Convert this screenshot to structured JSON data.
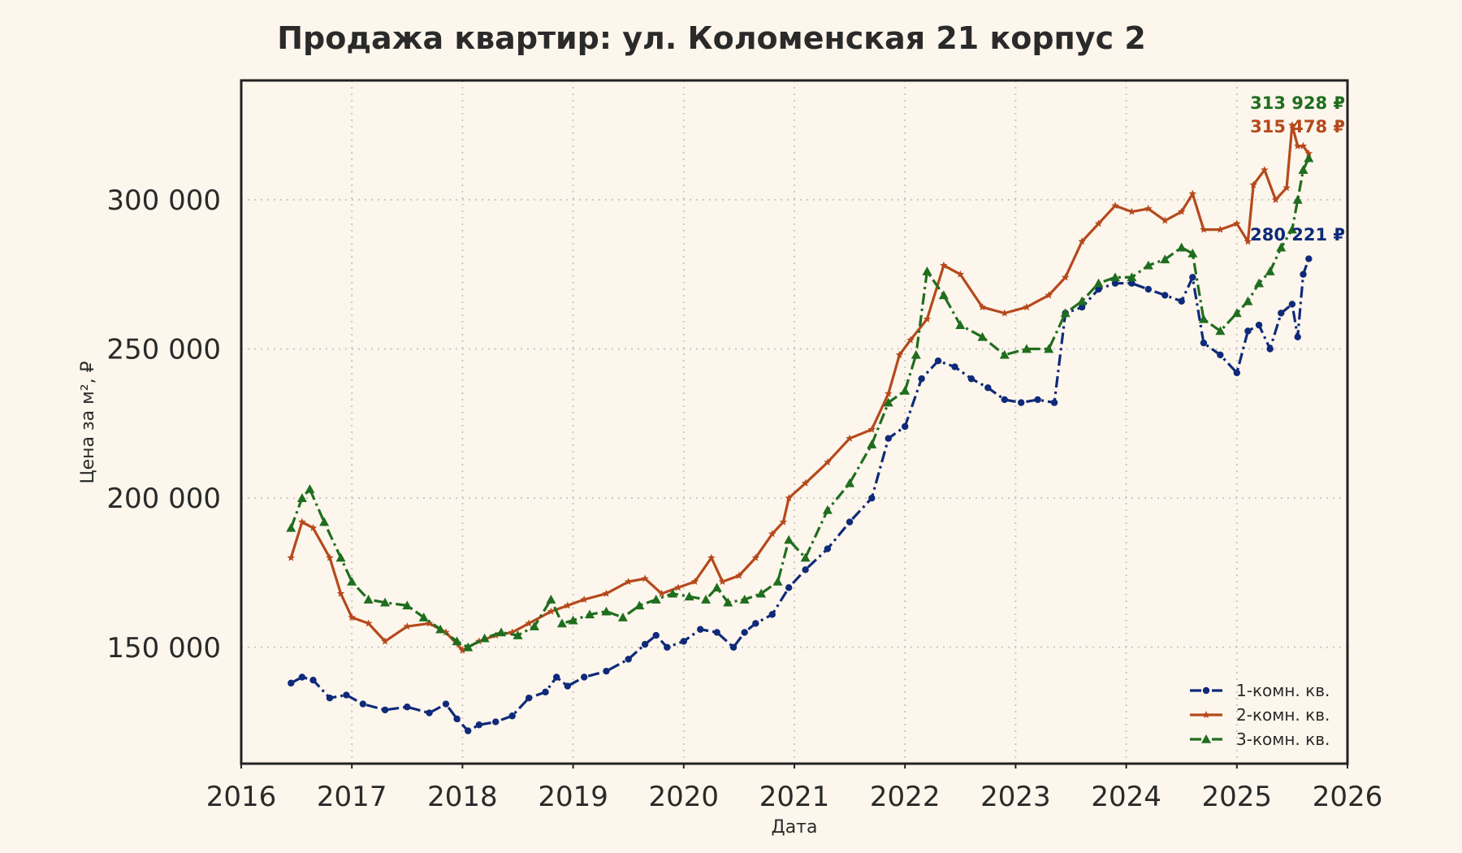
{
  "chart_data": {
    "type": "line",
    "title": "Продажа квартир: ул. Коломенская 21 корпус 2",
    "xlabel": "Дата",
    "ylabel": "Цена за м², ₽",
    "xlim": [
      2016,
      2026
    ],
    "ylim": [
      111000,
      340000
    ],
    "x_ticks": [
      "2016",
      "2017",
      "2018",
      "2019",
      "2020",
      "2021",
      "2022",
      "2023",
      "2024",
      "2025",
      "2026"
    ],
    "y_ticks": [
      {
        "value": 150000,
        "label": "150 000"
      },
      {
        "value": 200000,
        "label": "200 000"
      },
      {
        "value": 250000,
        "label": "250 000"
      },
      {
        "value": 300000,
        "label": "300 000"
      }
    ],
    "grid": true,
    "legend_position": "lower-right",
    "series": [
      {
        "name": "1-комн. кв.",
        "color": "#0f2a7a",
        "line_style": "dashdot",
        "marker": "circle",
        "end_label": "280 221 ₽",
        "x": [
          2016.45,
          2016.55,
          2016.65,
          2016.8,
          2016.95,
          2017.1,
          2017.3,
          2017.5,
          2017.7,
          2017.85,
          2017.95,
          2018.05,
          2018.15,
          2018.3,
          2018.45,
          2018.6,
          2018.75,
          2018.85,
          2018.95,
          2019.1,
          2019.3,
          2019.5,
          2019.65,
          2019.75,
          2019.85,
          2020.0,
          2020.15,
          2020.3,
          2020.45,
          2020.55,
          2020.65,
          2020.8,
          2020.95,
          2021.1,
          2021.3,
          2021.5,
          2021.7,
          2021.85,
          2022.0,
          2022.15,
          2022.3,
          2022.45,
          2022.6,
          2022.75,
          2022.9,
          2023.05,
          2023.2,
          2023.35,
          2023.45,
          2023.6,
          2023.75,
          2023.9,
          2024.05,
          2024.2,
          2024.35,
          2024.5,
          2024.6,
          2024.7,
          2024.85,
          2025.0,
          2025.1,
          2025.2,
          2025.3,
          2025.4,
          2025.5,
          2025.55,
          2025.6,
          2025.65
        ],
        "y": [
          138000,
          140000,
          139000,
          133000,
          134000,
          131000,
          129000,
          130000,
          128000,
          131000,
          126000,
          122000,
          124000,
          125000,
          127000,
          133000,
          135000,
          140000,
          137000,
          140000,
          142000,
          146000,
          151000,
          154000,
          150000,
          152000,
          156000,
          155000,
          150000,
          155000,
          158000,
          161000,
          170000,
          176000,
          183000,
          192000,
          200000,
          220000,
          224000,
          240000,
          246000,
          244000,
          240000,
          237000,
          233000,
          232000,
          233000,
          232000,
          262000,
          264000,
          270000,
          272000,
          272000,
          270000,
          268000,
          266000,
          274000,
          252000,
          248000,
          242000,
          256000,
          258000,
          250000,
          262000,
          265000,
          254000,
          275000,
          280221
        ]
      },
      {
        "name": "2-комн. кв.",
        "color": "#b5491c",
        "line_style": "solid",
        "marker": "star",
        "end_label": "315 478 ₽",
        "x": [
          2016.45,
          2016.55,
          2016.65,
          2016.8,
          2016.9,
          2017.0,
          2017.15,
          2017.3,
          2017.5,
          2017.7,
          2017.85,
          2018.0,
          2018.15,
          2018.3,
          2018.45,
          2018.6,
          2018.8,
          2018.95,
          2019.1,
          2019.3,
          2019.5,
          2019.65,
          2019.8,
          2019.95,
          2020.1,
          2020.25,
          2020.35,
          2020.5,
          2020.65,
          2020.8,
          2020.9,
          2020.95,
          2021.1,
          2021.3,
          2021.5,
          2021.7,
          2021.85,
          2021.95,
          2022.05,
          2022.2,
          2022.35,
          2022.5,
          2022.7,
          2022.9,
          2023.1,
          2023.3,
          2023.45,
          2023.6,
          2023.75,
          2023.9,
          2024.05,
          2024.2,
          2024.35,
          2024.5,
          2024.6,
          2024.7,
          2024.85,
          2025.0,
          2025.1,
          2025.15,
          2025.25,
          2025.35,
          2025.45,
          2025.5,
          2025.55,
          2025.6,
          2025.65
        ],
        "y": [
          180000,
          192000,
          190000,
          180000,
          168000,
          160000,
          158000,
          152000,
          157000,
          158000,
          155000,
          149000,
          152000,
          154000,
          155000,
          158000,
          162000,
          164000,
          166000,
          168000,
          172000,
          173000,
          168000,
          170000,
          172000,
          180000,
          172000,
          174000,
          180000,
          188000,
          192000,
          200000,
          205000,
          212000,
          220000,
          223000,
          235000,
          248000,
          253000,
          260000,
          278000,
          275000,
          264000,
          262000,
          264000,
          268000,
          274000,
          286000,
          292000,
          298000,
          296000,
          297000,
          293000,
          296000,
          302000,
          290000,
          290000,
          292000,
          286000,
          305000,
          310000,
          300000,
          304000,
          325000,
          318000,
          318000,
          315478
        ]
      },
      {
        "name": "3-комн. кв.",
        "color": "#1f6e1f",
        "line_style": "dashdot",
        "marker": "triangle",
        "end_label": "313 928 ₽",
        "x": [
          2016.45,
          2016.55,
          2016.62,
          2016.75,
          2016.9,
          2017.0,
          2017.15,
          2017.3,
          2017.5,
          2017.65,
          2017.8,
          2017.95,
          2018.05,
          2018.2,
          2018.35,
          2018.5,
          2018.65,
          2018.8,
          2018.9,
          2019.0,
          2019.15,
          2019.3,
          2019.45,
          2019.6,
          2019.75,
          2019.9,
          2020.05,
          2020.2,
          2020.3,
          2020.4,
          2020.55,
          2020.7,
          2020.85,
          2020.95,
          2021.1,
          2021.3,
          2021.5,
          2021.7,
          2021.85,
          2022.0,
          2022.1,
          2022.2,
          2022.35,
          2022.5,
          2022.7,
          2022.9,
          2023.1,
          2023.3,
          2023.45,
          2023.6,
          2023.75,
          2023.9,
          2024.05,
          2024.2,
          2024.35,
          2024.5,
          2024.6,
          2024.7,
          2024.85,
          2025.0,
          2025.1,
          2025.2,
          2025.3,
          2025.4,
          2025.5,
          2025.55,
          2025.6,
          2025.65
        ],
        "y": [
          190000,
          200000,
          203000,
          192000,
          180000,
          172000,
          166000,
          165000,
          164000,
          160000,
          156000,
          152000,
          150000,
          153000,
          155000,
          154000,
          157000,
          166000,
          158000,
          159000,
          161000,
          162000,
          160000,
          164000,
          166000,
          168000,
          167000,
          166000,
          170000,
          165000,
          166000,
          168000,
          172000,
          186000,
          180000,
          196000,
          205000,
          218000,
          232000,
          236000,
          248000,
          276000,
          268000,
          258000,
          254000,
          248000,
          250000,
          250000,
          262000,
          266000,
          272000,
          274000,
          274000,
          278000,
          280000,
          284000,
          282000,
          260000,
          256000,
          262000,
          266000,
          272000,
          276000,
          284000,
          290000,
          300000,
          310000,
          313928
        ]
      }
    ]
  }
}
